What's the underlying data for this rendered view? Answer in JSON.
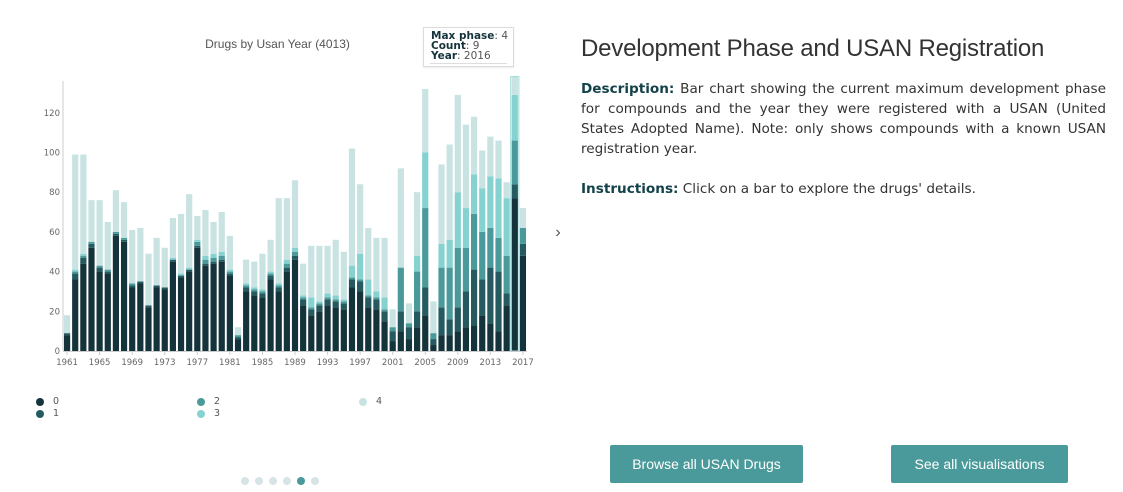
{
  "chart": {
    "title": "Drugs by Usan Year (4013)"
  },
  "tooltip": {
    "max_phase_label": "Max phase",
    "max_phase_value": "4",
    "count_label": "Count",
    "count_value": "9",
    "year_label": "Year",
    "year_value": "2016"
  },
  "legend": {
    "items": [
      {
        "label": "0",
        "color": "#14333a"
      },
      {
        "label": "1",
        "color": "#245a60"
      },
      {
        "label": "2",
        "color": "#4a9a9b"
      },
      {
        "label": "3",
        "color": "#86d2d1"
      },
      {
        "label": "4",
        "color": "#c8e3e2"
      }
    ]
  },
  "info": {
    "title": "Development Phase and USAN Registration",
    "description_label": "Description:",
    "description_text": "Bar chart showing the current maximum development phase for compounds and the year they were registered with a USAN (United States Adopted Name). Note: only shows compounds with a known USAN registration year.",
    "instructions_label": "Instructions:",
    "instructions_text": "Click on a bar to explore the drugs' details."
  },
  "buttons": {
    "browse_label": "Browse all USAN Drugs",
    "all_label": "See all visualisations"
  },
  "carousel": {
    "dots": [
      false,
      false,
      false,
      false,
      true,
      false
    ]
  },
  "colors": {
    "phase_0": "#14333a",
    "phase_1": "#245a60",
    "phase_2": "#4a9a9b",
    "phase_3": "#86d2d1",
    "phase_4": "#c8e3e2",
    "button": "#4a9a9b"
  },
  "chart_data": {
    "type": "bar",
    "stacked": true,
    "title": "Drugs by Usan Year (4013)",
    "xlabel": "",
    "ylabel": "",
    "ylim": [
      0,
      135
    ],
    "yticks": [
      0,
      20,
      40,
      60,
      80,
      100,
      120
    ],
    "xticks": [
      "1961",
      "1965",
      "1969",
      "1973",
      "1977",
      "1981",
      "1985",
      "1989",
      "1993",
      "1997",
      "2001",
      "2005",
      "2009",
      "2013",
      "2017"
    ],
    "legend_position": "bottom",
    "categories": [
      "1961",
      "1962",
      "1963",
      "1964",
      "1965",
      "1966",
      "1967",
      "1968",
      "1969",
      "1970",
      "1971",
      "1972",
      "1973",
      "1974",
      "1975",
      "1976",
      "1977",
      "1978",
      "1979",
      "1980",
      "1981",
      "1982",
      "1983",
      "1984",
      "1985",
      "1986",
      "1987",
      "1988",
      "1989",
      "1990",
      "1991",
      "1992",
      "1993",
      "1994",
      "1995",
      "1996",
      "1997",
      "1998",
      "1999",
      "2000",
      "2001",
      "2002",
      "2003",
      "2004",
      "2005",
      "2006",
      "2007",
      "2008",
      "2009",
      "2010",
      "2011",
      "2012",
      "2013",
      "2014",
      "2015",
      "2016",
      "2017"
    ],
    "series": [
      {
        "name": "0",
        "values": [
          8,
          36,
          44,
          52,
          40,
          39,
          58,
          55,
          32,
          34,
          22,
          32,
          31,
          45,
          37,
          40,
          52,
          43,
          44,
          45,
          38,
          6,
          30,
          28,
          27,
          36,
          30,
          40,
          46,
          23,
          18,
          20,
          23,
          22,
          21,
          32,
          30,
          22,
          21,
          15,
          5,
          10,
          6,
          12,
          18,
          3,
          8,
          8,
          10,
          12,
          13,
          18,
          14,
          10,
          23,
          77,
          48
        ]
      },
      {
        "name": "1",
        "values": [
          1,
          3,
          3,
          2,
          2,
          1,
          1,
          1,
          1,
          1,
          1,
          1,
          1,
          1,
          1,
          1,
          1,
          1,
          1,
          1,
          1,
          1,
          2,
          2,
          2,
          2,
          2,
          2,
          2,
          3,
          3,
          3,
          3,
          3,
          3,
          4,
          5,
          5,
          5,
          5,
          5,
          10,
          6,
          8,
          14,
          3,
          14,
          8,
          12,
          18,
          28,
          18,
          28,
          30,
          6,
          7,
          6
        ]
      },
      {
        "name": "2",
        "values": [
          0,
          1,
          1,
          1,
          1,
          1,
          1,
          1,
          1,
          0,
          0,
          0,
          0,
          0,
          0,
          0,
          2,
          2,
          2,
          2,
          1,
          1,
          1,
          1,
          1,
          1,
          1,
          2,
          2,
          1,
          1,
          1,
          1,
          1,
          1,
          1,
          1,
          1,
          1,
          1,
          2,
          22,
          2,
          20,
          40,
          3,
          20,
          26,
          30,
          22,
          28,
          24,
          20,
          17,
          19,
          22,
          8
        ]
      },
      {
        "name": "3",
        "values": [
          0,
          1,
          1,
          0,
          0,
          0,
          0,
          0,
          0,
          0,
          0,
          0,
          0,
          1,
          1,
          1,
          1,
          2,
          2,
          2,
          1,
          0,
          1,
          1,
          1,
          1,
          1,
          2,
          2,
          1,
          5,
          1,
          2,
          2,
          1,
          6,
          13,
          8,
          3,
          6,
          0,
          0,
          0,
          8,
          28,
          0,
          12,
          14,
          28,
          20,
          20,
          22,
          26,
          30,
          29,
          23,
          0
        ]
      },
      {
        "name": "4",
        "values": [
          9,
          58,
          50,
          21,
          33,
          24,
          21,
          18,
          27,
          27,
          26,
          24,
          20,
          20,
          30,
          37,
          12,
          23,
          16,
          20,
          17,
          4,
          12,
          13,
          18,
          16,
          43,
          31,
          34,
          16,
          26,
          28,
          24,
          28,
          24,
          59,
          35,
          26,
          27,
          30,
          9,
          50,
          10,
          32,
          32,
          16,
          40,
          48,
          49,
          42,
          29,
          19,
          20,
          19,
          8,
          9,
          10
        ]
      }
    ]
  }
}
